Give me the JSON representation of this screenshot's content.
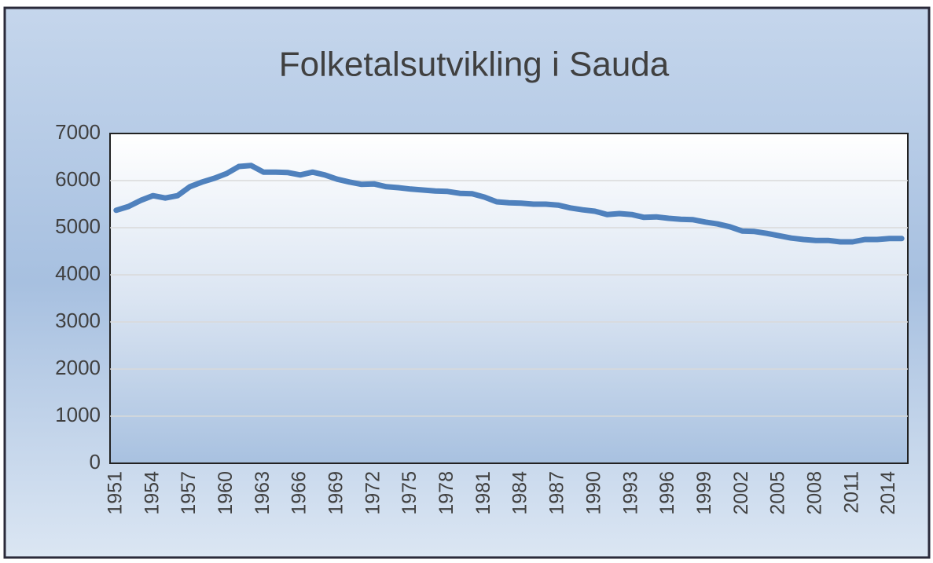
{
  "chart_data": {
    "type": "line",
    "title": "Folketalsutvikling i Sauda",
    "categories": [
      "1951",
      null,
      null,
      "1954",
      null,
      null,
      "1957",
      null,
      null,
      "1960",
      null,
      null,
      "1963",
      null,
      null,
      "1966",
      null,
      null,
      "1969",
      null,
      null,
      "1972",
      null,
      null,
      "1975",
      null,
      null,
      "1978",
      null,
      null,
      "1981",
      null,
      null,
      "1984",
      null,
      null,
      "1987",
      null,
      null,
      "1990",
      null,
      null,
      "1993",
      null,
      null,
      "1996",
      null,
      null,
      "1999",
      null,
      null,
      "2002",
      null,
      null,
      "2005",
      null,
      null,
      "2008",
      null,
      null,
      "2011",
      null,
      null,
      "2014",
      null
    ],
    "values": [
      5370,
      5450,
      5580,
      5680,
      5630,
      5680,
      5870,
      5970,
      6050,
      6150,
      6300,
      6320,
      6180,
      6180,
      6170,
      6120,
      6180,
      6120,
      6030,
      5970,
      5920,
      5930,
      5870,
      5850,
      5820,
      5800,
      5780,
      5770,
      5730,
      5720,
      5650,
      5550,
      5530,
      5520,
      5500,
      5500,
      5480,
      5420,
      5380,
      5350,
      5280,
      5300,
      5280,
      5220,
      5230,
      5200,
      5180,
      5170,
      5120,
      5080,
      5020,
      4930,
      4920,
      4880,
      4830,
      4780,
      4750,
      4730,
      4730,
      4700,
      4700,
      4750,
      4750,
      4770,
      4770
    ],
    "color": "#4f81bd",
    "ylim": [
      0,
      7000
    ],
    "yticks": [
      0,
      1000,
      2000,
      3000,
      4000,
      5000,
      6000,
      7000
    ],
    "grid": true
  }
}
